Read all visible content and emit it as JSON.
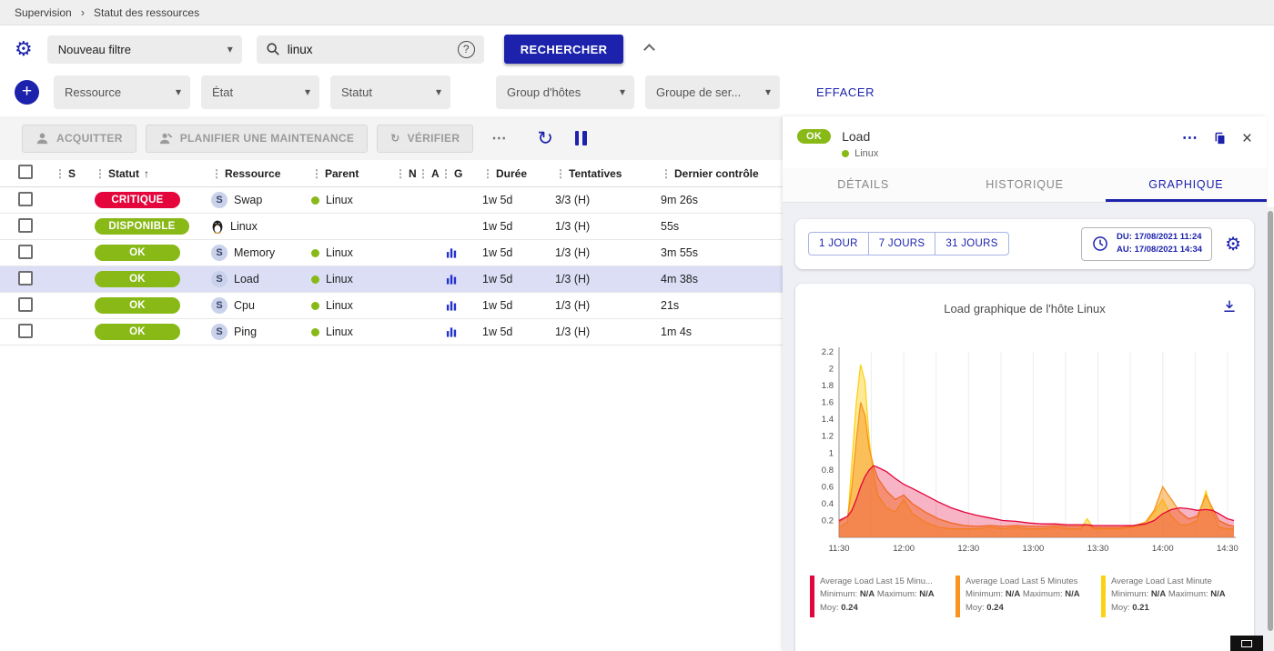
{
  "colors": {
    "accent": "#1c22ac",
    "ok_green": "#88b917",
    "critical_red": "#e3053c",
    "selected_row": "#dcdef6"
  },
  "icons": {
    "gear": "⚙",
    "caret_down": "▾",
    "sort_up": "↑",
    "grip": "⋮",
    "refresh": "↻",
    "check": "↻",
    "more_h": "⋯",
    "close": "×",
    "plus": "+",
    "chevron": "›",
    "help": "?",
    "service": "S"
  },
  "breadcrumb": {
    "home": "Supervision",
    "current": "Statut des ressources"
  },
  "filter_bar": {
    "filter_select_value": "Nouveau filtre",
    "search_value": "linux",
    "search_button_label": "RECHERCHER",
    "clear_label": "EFFACER",
    "criteria": [
      {
        "label": "Ressource"
      },
      {
        "label": "État"
      },
      {
        "label": "Statut"
      },
      {
        "label": "Group d'hôtes"
      },
      {
        "label": "Groupe de ser..."
      }
    ]
  },
  "toolbar": {
    "acknowledge_label": "ACQUITTER",
    "maintenance_label": "PLANIFIER UNE MAINTENANCE",
    "check_label": "VÉRIFIER"
  },
  "table": {
    "headers": {
      "state": "S",
      "status": "Statut",
      "resource": "Ressource",
      "parent": "Parent",
      "n": "N",
      "a": "A",
      "g": "G",
      "duration": "Durée",
      "tries": "Tentatives",
      "last_check": "Dernier contrôle"
    },
    "rows": [
      {
        "status": "CRITIQUE",
        "resource": "Swap",
        "parent": "Linux",
        "duration": "1w 5d",
        "tries": "3/3 (H)",
        "last_check": "9m 26s"
      },
      {
        "status": "DISPONIBLE",
        "resource": "Linux",
        "parent": "",
        "duration": "1w 5d",
        "tries": "1/3 (H)",
        "last_check": "55s"
      },
      {
        "status": "OK",
        "resource": "Memory",
        "parent": "Linux",
        "duration": "1w 5d",
        "tries": "1/3 (H)",
        "last_check": "3m 55s"
      },
      {
        "status": "OK",
        "resource": "Load",
        "parent": "Linux",
        "duration": "1w 5d",
        "tries": "1/3 (H)",
        "last_check": "4m 38s"
      },
      {
        "status": "OK",
        "resource": "Cpu",
        "parent": "Linux",
        "duration": "1w 5d",
        "tries": "1/3 (H)",
        "last_check": "21s"
      },
      {
        "status": "OK",
        "resource": "Ping",
        "parent": "Linux",
        "duration": "1w 5d",
        "tries": "1/3 (H)",
        "last_check": "1m 4s"
      }
    ]
  },
  "panel": {
    "status": "OK",
    "title": "Load",
    "host": "Linux",
    "tabs": [
      {
        "label": "DÉTAILS"
      },
      {
        "label": "HISTORIQUE"
      },
      {
        "label": "GRAPHIQUE"
      }
    ],
    "active_tab": "GRAPHIQUE",
    "ranges": [
      {
        "label": "1 JOUR"
      },
      {
        "label": "7 JOURS"
      },
      {
        "label": "31 JOURS"
      }
    ],
    "date_from": "DU: 17/08/2021 11:24",
    "date_to": "AU: 17/08/2021 14:34"
  },
  "chart_data": {
    "type": "area",
    "title": "Load graphique de l'hôte Linux",
    "ylim": [
      0,
      2.2
    ],
    "y_ticks": [
      0.2,
      0.4,
      0.6,
      0.8,
      1,
      1.2,
      1.4,
      1.6,
      1.8,
      2,
      2.2
    ],
    "x_max": 183,
    "x_ticks": [
      {
        "minute": 0,
        "label": "11:30"
      },
      {
        "minute": 30,
        "label": "12:00"
      },
      {
        "minute": 60,
        "label": "12:30"
      },
      {
        "minute": 90,
        "label": "13:00"
      },
      {
        "minute": 120,
        "label": "13:30"
      },
      {
        "minute": 150,
        "label": "14:00"
      },
      {
        "minute": 180,
        "label": "14:30"
      }
    ],
    "series": [
      {
        "name": "Average Load Last 15 Minu...",
        "color": "#e3053c",
        "fill_opacity": 0.3,
        "min_label": "Minimum:",
        "min": "N/A",
        "max_label": "Maximum:",
        "max": "N/A",
        "avg_label": "Moy:",
        "avg": "0.24",
        "x": [
          0,
          4,
          6,
          8,
          10,
          12,
          14,
          16,
          18,
          22,
          26,
          30,
          34,
          40,
          46,
          52,
          58,
          64,
          70,
          76,
          82,
          88,
          94,
          100,
          106,
          112,
          115,
          118,
          124,
          130,
          136,
          142,
          146,
          150,
          154,
          158,
          162,
          166,
          170,
          173,
          176,
          180,
          183
        ],
        "values": [
          0.2,
          0.25,
          0.32,
          0.45,
          0.6,
          0.72,
          0.8,
          0.85,
          0.83,
          0.78,
          0.7,
          0.63,
          0.58,
          0.5,
          0.42,
          0.35,
          0.3,
          0.26,
          0.23,
          0.2,
          0.19,
          0.17,
          0.16,
          0.16,
          0.15,
          0.15,
          0.15,
          0.14,
          0.14,
          0.14,
          0.14,
          0.16,
          0.2,
          0.28,
          0.33,
          0.35,
          0.34,
          0.32,
          0.33,
          0.32,
          0.28,
          0.22,
          0.2
        ]
      },
      {
        "name": "Average Load Last 5 Minutes",
        "color": "#f7931e",
        "fill_opacity": 0.5,
        "min_label": "Minimum:",
        "min": "N/A",
        "max_label": "Maximum:",
        "max": "N/A",
        "avg_label": "Moy:",
        "avg": "0.24",
        "x": [
          0,
          4,
          6,
          8,
          10,
          12,
          14,
          16,
          18,
          22,
          26,
          30,
          34,
          40,
          46,
          52,
          58,
          64,
          70,
          76,
          82,
          88,
          94,
          100,
          106,
          112,
          115,
          118,
          124,
          130,
          136,
          142,
          146,
          150,
          154,
          158,
          162,
          166,
          170,
          173,
          176,
          180,
          183
        ],
        "values": [
          0.18,
          0.25,
          0.6,
          1.15,
          1.6,
          1.45,
          1.05,
          0.85,
          0.7,
          0.55,
          0.45,
          0.5,
          0.4,
          0.3,
          0.22,
          0.17,
          0.14,
          0.13,
          0.14,
          0.13,
          0.14,
          0.13,
          0.13,
          0.14,
          0.13,
          0.13,
          0.15,
          0.12,
          0.12,
          0.12,
          0.13,
          0.18,
          0.32,
          0.6,
          0.45,
          0.3,
          0.22,
          0.25,
          0.5,
          0.35,
          0.2,
          0.15,
          0.13
        ]
      },
      {
        "name": "Average Load Last Minute",
        "color": "#fcd116",
        "fill_opacity": 0.45,
        "min_label": "Minimum:",
        "min": "N/A",
        "max_label": "Maximum:",
        "max": "N/A",
        "avg_label": "Moy:",
        "avg": "0.21",
        "x": [
          0,
          4,
          6,
          8,
          10,
          12,
          14,
          16,
          18,
          22,
          26,
          30,
          34,
          40,
          46,
          52,
          58,
          64,
          70,
          76,
          82,
          88,
          94,
          100,
          106,
          112,
          115,
          118,
          124,
          130,
          136,
          142,
          146,
          150,
          154,
          158,
          162,
          166,
          170,
          173,
          176,
          180,
          183
        ],
        "values": [
          0.12,
          0.18,
          0.9,
          1.6,
          2.05,
          1.85,
          1.15,
          0.75,
          0.5,
          0.35,
          0.3,
          0.45,
          0.28,
          0.18,
          0.12,
          0.1,
          0.1,
          0.1,
          0.12,
          0.1,
          0.12,
          0.1,
          0.1,
          0.12,
          0.1,
          0.1,
          0.22,
          0.1,
          0.1,
          0.1,
          0.12,
          0.15,
          0.3,
          0.45,
          0.25,
          0.15,
          0.15,
          0.2,
          0.55,
          0.3,
          0.12,
          0.1,
          0.1
        ]
      }
    ]
  }
}
